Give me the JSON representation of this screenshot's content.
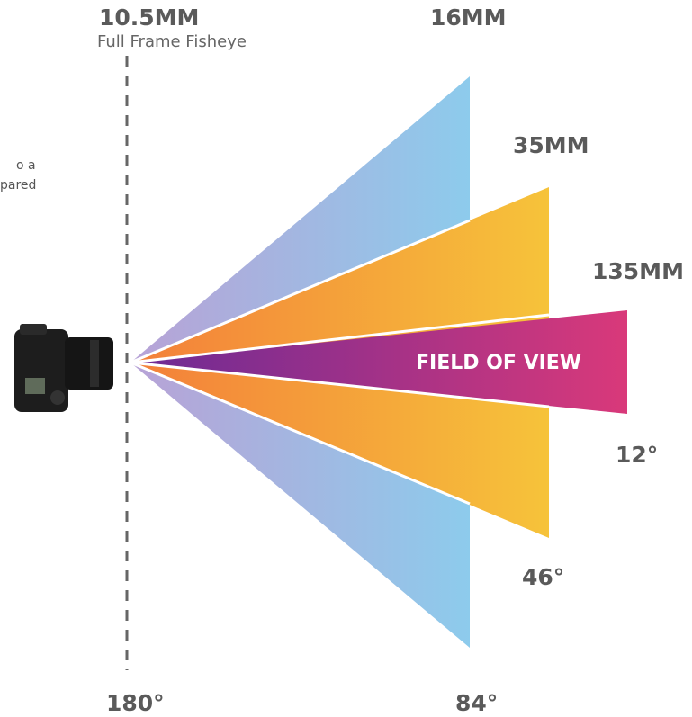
{
  "side_note": [
    "o a",
    "pared"
  ],
  "lenses": [
    {
      "focal": "10.5MM",
      "description": "Full Frame Fisheye",
      "angle": "180°"
    },
    {
      "focal": "16MM",
      "angle": "84°"
    },
    {
      "focal": "35MM",
      "angle": "46°"
    },
    {
      "focal": "135MM",
      "angle": "12°"
    }
  ],
  "center_label": "FIELD OF VIEW"
}
